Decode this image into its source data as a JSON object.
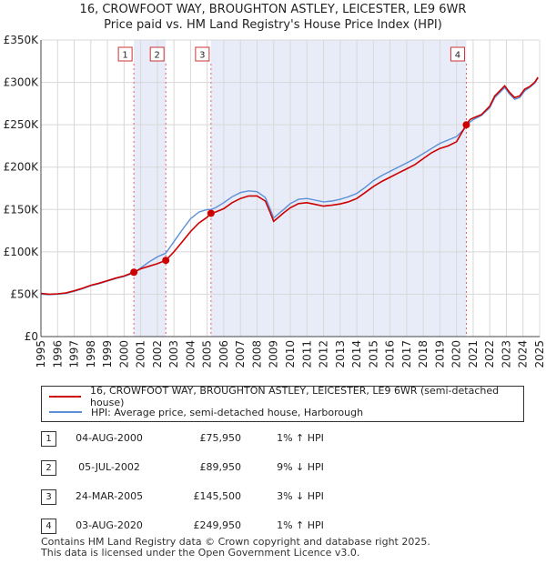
{
  "title_line1": "16, CROWFOOT WAY, BROUGHTON ASTLEY, LEICESTER, LE9 6WR",
  "title_line2": "Price paid vs. HM Land Registry's House Price Index (HPI)",
  "chart_data": {
    "type": "line",
    "title": "16, CROWFOOT WAY, BROUGHTON ASTLEY, LEICESTER, LE9 6WR — Price paid vs. HM Land Registry's House Price Index (HPI)",
    "xlabel": "",
    "ylabel": "",
    "xlim": [
      1995,
      2025
    ],
    "ylim": [
      0,
      350000
    ],
    "x_ticks": [
      "1995",
      "1996",
      "1997",
      "1998",
      "1999",
      "2000",
      "2001",
      "2002",
      "2003",
      "2004",
      "2005",
      "2006",
      "2007",
      "2008",
      "2009",
      "2010",
      "2011",
      "2012",
      "2013",
      "2014",
      "2015",
      "2016",
      "2017",
      "2018",
      "2019",
      "2020",
      "2021",
      "2022",
      "2023",
      "2024",
      "2025"
    ],
    "y_ticks": [
      {
        "value": 0,
        "label": "£0"
      },
      {
        "value": 50000,
        "label": "£50K"
      },
      {
        "value": 100000,
        "label": "£100K"
      },
      {
        "value": 150000,
        "label": "£150K"
      },
      {
        "value": 200000,
        "label": "£200K"
      },
      {
        "value": 250000,
        "label": "£250K"
      },
      {
        "value": 300000,
        "label": "£300K"
      },
      {
        "value": 350000,
        "label": "£350K"
      }
    ],
    "grid": true,
    "series": [
      {
        "name": "16, CROWFOOT WAY, BROUGHTON ASTLEY, LEICESTER, LE9 6WR (semi-detached house)",
        "color": "#cc0000",
        "x": [
          1995.0,
          1995.5,
          1996.0,
          1996.5,
          1997.0,
          1997.5,
          1998.0,
          1998.5,
          1999.0,
          1999.5,
          2000.0,
          2000.59,
          2001.0,
          2001.5,
          2002.0,
          2002.51,
          2003.0,
          2003.5,
          2004.0,
          2004.5,
          2005.0,
          2005.23,
          2005.5,
          2006.0,
          2006.5,
          2007.0,
          2007.5,
          2008.0,
          2008.5,
          2008.8,
          2009.0,
          2009.3,
          2009.6,
          2010.0,
          2010.5,
          2011.0,
          2011.5,
          2012.0,
          2012.5,
          2013.0,
          2013.5,
          2014.0,
          2014.5,
          2015.0,
          2015.5,
          2016.0,
          2016.5,
          2017.0,
          2017.5,
          2018.0,
          2018.5,
          2019.0,
          2019.5,
          2020.0,
          2020.59,
          2020.8,
          2021.0,
          2021.5,
          2022.0,
          2022.3,
          2022.6,
          2022.9,
          2023.2,
          2023.5,
          2023.8,
          2024.1,
          2024.4,
          2024.7,
          2024.9
        ],
        "values": [
          51000,
          50000,
          50500,
          51500,
          54000,
          57000,
          60500,
          63000,
          66000,
          69000,
          71500,
          75950,
          80000,
          83000,
          86000,
          89950,
          100000,
          112000,
          124000,
          134000,
          141000,
          145500,
          147000,
          151000,
          158000,
          163000,
          166000,
          166000,
          160000,
          146000,
          136000,
          141000,
          146000,
          152000,
          157000,
          158000,
          156000,
          154000,
          155000,
          156500,
          159000,
          163000,
          170000,
          177000,
          183000,
          188000,
          193000,
          198000,
          203000,
          210000,
          217000,
          222000,
          225000,
          230000,
          249950,
          256000,
          258000,
          262000,
          272000,
          284000,
          290000,
          296000,
          288000,
          282000,
          284000,
          292000,
          295000,
          300000,
          306000
        ]
      },
      {
        "name": "HPI: Average price, semi-detached house, Harborough",
        "color": "#5b8fd6",
        "x": [
          1995.0,
          1995.5,
          1996.0,
          1996.5,
          1997.0,
          1997.5,
          1998.0,
          1998.5,
          1999.0,
          1999.5,
          2000.0,
          2000.59,
          2001.0,
          2001.5,
          2002.0,
          2002.51,
          2003.0,
          2003.5,
          2004.0,
          2004.5,
          2005.0,
          2005.23,
          2005.5,
          2006.0,
          2006.5,
          2007.0,
          2007.5,
          2008.0,
          2008.5,
          2008.8,
          2009.0,
          2009.3,
          2009.6,
          2010.0,
          2010.5,
          2011.0,
          2011.5,
          2012.0,
          2012.5,
          2013.0,
          2013.5,
          2014.0,
          2014.5,
          2015.0,
          2015.5,
          2016.0,
          2016.5,
          2017.0,
          2017.5,
          2018.0,
          2018.5,
          2019.0,
          2019.5,
          2020.0,
          2020.59,
          2020.8,
          2021.0,
          2021.5,
          2022.0,
          2022.3,
          2022.6,
          2022.9,
          2023.2,
          2023.5,
          2023.8,
          2024.1,
          2024.4,
          2024.7,
          2024.9
        ],
        "values": [
          50000,
          49500,
          50000,
          51000,
          53500,
          56500,
          60000,
          62500,
          65500,
          68500,
          71000,
          75200,
          81000,
          88000,
          94000,
          98500,
          112000,
          126000,
          139000,
          147000,
          150000,
          150000,
          152000,
          158000,
          165000,
          170000,
          172000,
          171000,
          164000,
          150000,
          140000,
          145000,
          150000,
          157000,
          162000,
          163000,
          161000,
          159000,
          160000,
          162000,
          165000,
          169000,
          176000,
          184000,
          190000,
          195000,
          200000,
          205000,
          210000,
          216000,
          222000,
          228000,
          232000,
          236000,
          247500,
          253000,
          256000,
          261000,
          270000,
          282000,
          288000,
          294000,
          286000,
          280000,
          282000,
          290000,
          294000,
          299000,
          305000
        ]
      }
    ],
    "events": [
      {
        "label": "1",
        "x": 2000.59,
        "price": 75950
      },
      {
        "label": "2",
        "x": 2002.51,
        "price": 89950
      },
      {
        "label": "3",
        "x": 2005.23,
        "price": 145500
      },
      {
        "label": "4",
        "x": 2020.59,
        "price": 249950
      }
    ],
    "shaded_ranges": [
      [
        2000.59,
        2002.51
      ],
      [
        2005.23,
        2020.59
      ]
    ]
  },
  "legend": {
    "property_label": "16, CROWFOOT WAY, BROUGHTON ASTLEY, LEICESTER, LE9 6WR (semi-detached house)",
    "hpi_label": "HPI: Average price, semi-detached house, Harborough",
    "property_color": "#cc0000",
    "hpi_color": "#5b8fd6"
  },
  "sales": [
    {
      "num": "1",
      "date": "04-AUG-2000",
      "price": "£75,950",
      "hpi": "1% ↑ HPI"
    },
    {
      "num": "2",
      "date": "05-JUL-2002",
      "price": "£89,950",
      "hpi": "9% ↓ HPI"
    },
    {
      "num": "3",
      "date": "24-MAR-2005",
      "price": "£145,500",
      "hpi": "3% ↓ HPI"
    },
    {
      "num": "4",
      "date": "03-AUG-2020",
      "price": "£249,950",
      "hpi": "1% ↑ HPI"
    }
  ],
  "footer_line1": "Contains HM Land Registry data © Crown copyright and database right 2025.",
  "footer_line2": "This data is licensed under the Open Government Licence v3.0."
}
